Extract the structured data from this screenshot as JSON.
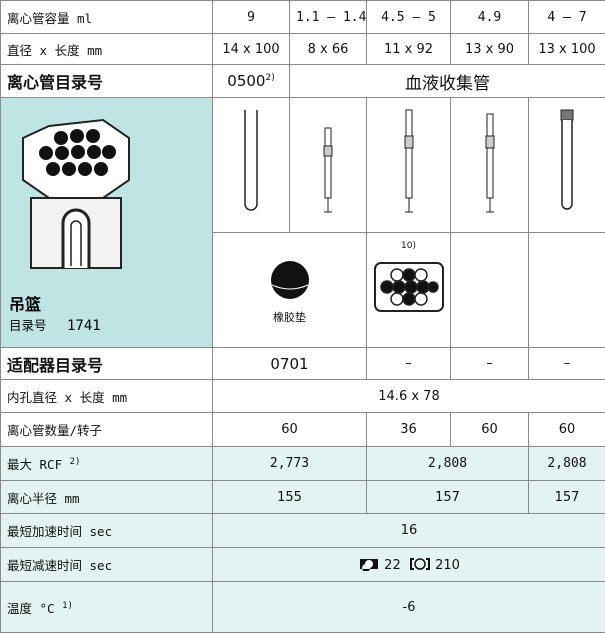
{
  "table": {
    "capacity": {
      "label": "离心管容量 ml",
      "cells": [
        "9",
        "1.1 – 1.4",
        "4.5 – 5",
        "4.9",
        "4 – 7"
      ]
    },
    "dimensions": {
      "label": "直径 x 长度 mm",
      "cells": [
        "14 x 100",
        "8 x 66",
        "11 x 92",
        "13 x 90",
        "13 x 100"
      ]
    },
    "tube_catalog": {
      "label": "离心管目录号",
      "code": "0500",
      "code_note": "2)",
      "group": "血液收集管"
    },
    "bucket": {
      "label": "吊篮",
      "catalog_label": "目录号",
      "catalog": "1741"
    },
    "accessories": {
      "rubber_pad": "橡胶垫",
      "note": "10)"
    },
    "adapter": {
      "label": "适配器目录号",
      "cells": [
        "0701",
        "–",
        "–",
        "–"
      ]
    },
    "bore": {
      "label": "内孔直径 x 长度 mm",
      "value": "14.6 x 78"
    },
    "tubes_per_rotor": {
      "label": "离心管数量/转子",
      "cells": [
        "60",
        "36",
        "60",
        "60"
      ]
    },
    "max_rcf": {
      "label": "最大 RCF",
      "note": "2)",
      "cells": [
        "2,773",
        "2,808",
        "2,808"
      ]
    },
    "radius": {
      "label": "离心半径 mm",
      "cells": [
        "155",
        "157",
        "157"
      ]
    },
    "accel": {
      "label": "最短加速时间 sec",
      "value": "16"
    },
    "decel": {
      "label": "最短减速时间 sec",
      "brake_on": "22",
      "brake_off": "210"
    },
    "temperature": {
      "label": "温度 °C",
      "note": "1)",
      "value": "-6"
    }
  }
}
